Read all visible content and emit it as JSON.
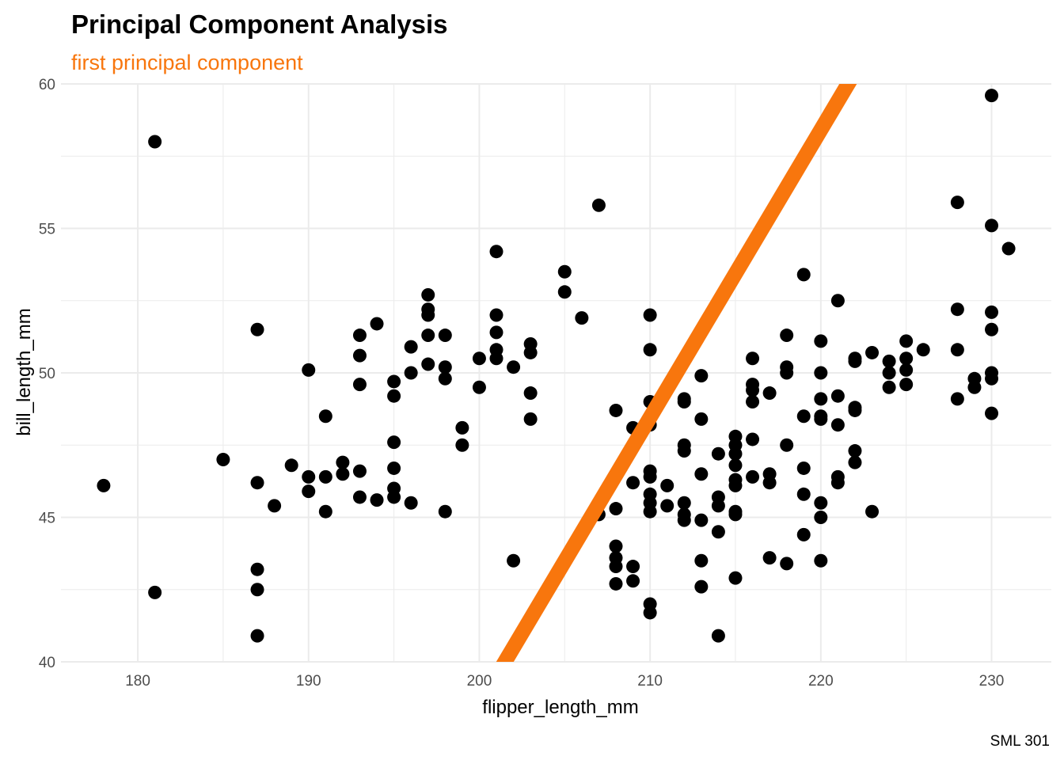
{
  "colors": {
    "accent": "#f8760d",
    "points": "#000000",
    "grid": "#ebebeb"
  },
  "chart_data": {
    "type": "scatter",
    "title": "Principal Component Analysis",
    "subtitle": "first principal component",
    "xlabel": "flipper_length_mm",
    "ylabel": "bill_length_mm",
    "caption": "SML 301",
    "xlim": [
      175.5,
      233.5
    ],
    "ylim": [
      40,
      60
    ],
    "xticks": [
      180,
      190,
      200,
      210,
      220,
      230
    ],
    "yticks": [
      40,
      45,
      50,
      55,
      60
    ],
    "grid": true,
    "line": {
      "x1": 201.5,
      "y1": 40,
      "x2": 222.2,
      "y2": 60.6
    },
    "points": [
      [
        178,
        46.1
      ],
      [
        181,
        58.0
      ],
      [
        181,
        42.4
      ],
      [
        185,
        47.0
      ],
      [
        187,
        51.5
      ],
      [
        187,
        46.2
      ],
      [
        187,
        43.2
      ],
      [
        187,
        42.5
      ],
      [
        187,
        40.9
      ],
      [
        188,
        45.4
      ],
      [
        189,
        46.8
      ],
      [
        190,
        50.1
      ],
      [
        190,
        46.4
      ],
      [
        190,
        45.9
      ],
      [
        191,
        48.5
      ],
      [
        191,
        46.4
      ],
      [
        191,
        45.2
      ],
      [
        192,
        46.9
      ],
      [
        192,
        46.5
      ],
      [
        193,
        51.3
      ],
      [
        193,
        50.6
      ],
      [
        193,
        49.6
      ],
      [
        193,
        46.6
      ],
      [
        193,
        45.7
      ],
      [
        194,
        51.7
      ],
      [
        194,
        45.6
      ],
      [
        195,
        49.7
      ],
      [
        195,
        49.2
      ],
      [
        195,
        47.6
      ],
      [
        195,
        46.7
      ],
      [
        195,
        46.0
      ],
      [
        195,
        45.7
      ],
      [
        196,
        50.9
      ],
      [
        196,
        50.0
      ],
      [
        196,
        45.5
      ],
      [
        197,
        52.7
      ],
      [
        197,
        52.2
      ],
      [
        197,
        52.0
      ],
      [
        197,
        51.3
      ],
      [
        197,
        50.3
      ],
      [
        198,
        51.3
      ],
      [
        198,
        50.2
      ],
      [
        198,
        49.8
      ],
      [
        198,
        45.2
      ],
      [
        199,
        48.1
      ],
      [
        199,
        47.5
      ],
      [
        200,
        50.5
      ],
      [
        200,
        49.5
      ],
      [
        201,
        54.2
      ],
      [
        201,
        52.0
      ],
      [
        201,
        51.4
      ],
      [
        201,
        50.8
      ],
      [
        201,
        50.5
      ],
      [
        202,
        50.2
      ],
      [
        202,
        43.5
      ],
      [
        203,
        51.0
      ],
      [
        203,
        50.7
      ],
      [
        203,
        49.3
      ],
      [
        203,
        48.4
      ],
      [
        205,
        53.5
      ],
      [
        205,
        52.8
      ],
      [
        206,
        51.9
      ],
      [
        207,
        55.8
      ],
      [
        207,
        45.1
      ],
      [
        208,
        48.7
      ],
      [
        208,
        45.3
      ],
      [
        208,
        44.0
      ],
      [
        208,
        43.6
      ],
      [
        208,
        43.3
      ],
      [
        208,
        42.7
      ],
      [
        209,
        48.1
      ],
      [
        209,
        47.5
      ],
      [
        209,
        46.2
      ],
      [
        209,
        43.3
      ],
      [
        209,
        42.8
      ],
      [
        210,
        52.0
      ],
      [
        210,
        50.8
      ],
      [
        210,
        49.0
      ],
      [
        210,
        48.2
      ],
      [
        210,
        46.6
      ],
      [
        210,
        46.4
      ],
      [
        210,
        45.8
      ],
      [
        210,
        45.5
      ],
      [
        210,
        45.2
      ],
      [
        210,
        42.0
      ],
      [
        210,
        41.7
      ],
      [
        211,
        46.1
      ],
      [
        211,
        45.4
      ],
      [
        212,
        49.1
      ],
      [
        212,
        49.0
      ],
      [
        212,
        47.5
      ],
      [
        212,
        47.3
      ],
      [
        212,
        45.5
      ],
      [
        212,
        45.1
      ],
      [
        212,
        44.9
      ],
      [
        213,
        49.9
      ],
      [
        213,
        48.4
      ],
      [
        213,
        46.5
      ],
      [
        213,
        44.9
      ],
      [
        213,
        43.5
      ],
      [
        213,
        42.6
      ],
      [
        214,
        47.2
      ],
      [
        214,
        45.7
      ],
      [
        214,
        45.4
      ],
      [
        214,
        44.5
      ],
      [
        214,
        40.9
      ],
      [
        215,
        47.8
      ],
      [
        215,
        47.5
      ],
      [
        215,
        47.2
      ],
      [
        215,
        46.8
      ],
      [
        215,
        46.3
      ],
      [
        215,
        46.1
      ],
      [
        215,
        45.2
      ],
      [
        215,
        45.1
      ],
      [
        215,
        42.9
      ],
      [
        216,
        50.5
      ],
      [
        216,
        49.6
      ],
      [
        216,
        49.4
      ],
      [
        216,
        49.0
      ],
      [
        216,
        47.7
      ],
      [
        216,
        46.4
      ],
      [
        217,
        49.3
      ],
      [
        217,
        46.5
      ],
      [
        217,
        46.2
      ],
      [
        217,
        43.6
      ],
      [
        218,
        51.3
      ],
      [
        218,
        50.2
      ],
      [
        218,
        50.0
      ],
      [
        218,
        47.5
      ],
      [
        218,
        43.4
      ],
      [
        219,
        53.4
      ],
      [
        219,
        48.5
      ],
      [
        219,
        46.7
      ],
      [
        219,
        45.8
      ],
      [
        219,
        44.4
      ],
      [
        220,
        51.1
      ],
      [
        220,
        50.0
      ],
      [
        220,
        49.1
      ],
      [
        220,
        48.5
      ],
      [
        220,
        48.4
      ],
      [
        220,
        45.5
      ],
      [
        220,
        45.0
      ],
      [
        220,
        43.5
      ],
      [
        221,
        52.5
      ],
      [
        221,
        49.2
      ],
      [
        221,
        48.2
      ],
      [
        221,
        46.4
      ],
      [
        221,
        46.2
      ],
      [
        222,
        50.5
      ],
      [
        222,
        50.4
      ],
      [
        222,
        48.8
      ],
      [
        222,
        48.7
      ],
      [
        222,
        47.3
      ],
      [
        222,
        46.9
      ],
      [
        223,
        50.7
      ],
      [
        223,
        45.2
      ],
      [
        224,
        50.4
      ],
      [
        224,
        50.0
      ],
      [
        224,
        49.5
      ],
      [
        225,
        51.1
      ],
      [
        225,
        50.5
      ],
      [
        225,
        50.1
      ],
      [
        225,
        49.6
      ],
      [
        226,
        50.8
      ],
      [
        228,
        55.9
      ],
      [
        228,
        52.2
      ],
      [
        228,
        50.8
      ],
      [
        228,
        49.1
      ],
      [
        229,
        49.8
      ],
      [
        229,
        49.5
      ],
      [
        230,
        59.6
      ],
      [
        230,
        55.1
      ],
      [
        230,
        52.1
      ],
      [
        230,
        51.5
      ],
      [
        230,
        50.0
      ],
      [
        230,
        49.8
      ],
      [
        230,
        48.6
      ],
      [
        231,
        54.3
      ]
    ]
  }
}
